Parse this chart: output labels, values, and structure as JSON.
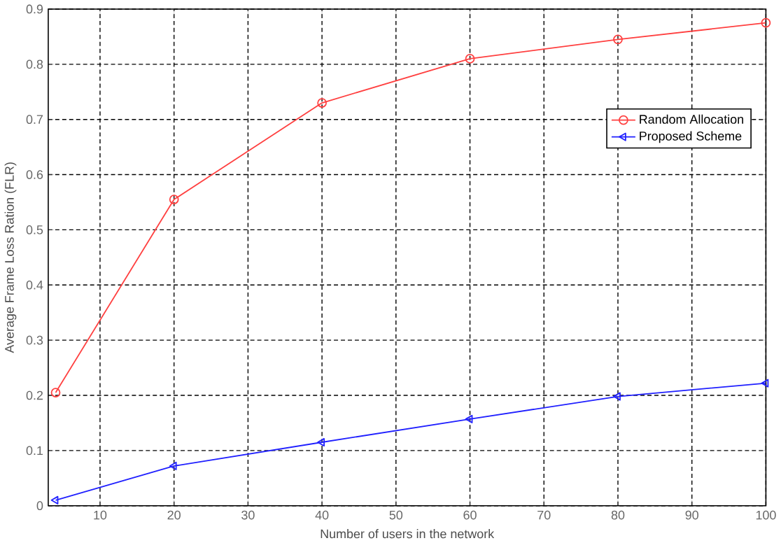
{
  "chart_data": {
    "type": "line",
    "xlabel": "Number of users in the network",
    "ylabel": "Average Frame Loss Ration (FLR)",
    "x": [
      4,
      20,
      40,
      60,
      80,
      100
    ],
    "series": [
      {
        "name": "Random Allocation",
        "color": "#ff4040",
        "marker": "circle",
        "values": [
          0.205,
          0.555,
          0.73,
          0.81,
          0.845,
          0.875
        ]
      },
      {
        "name": "Proposed Scheme",
        "color": "#2020ff",
        "marker": "triangle",
        "values": [
          0.01,
          0.072,
          0.115,
          0.157,
          0.198,
          0.222
        ]
      }
    ],
    "xlim": [
      3,
      100
    ],
    "xticks": [
      10,
      20,
      30,
      40,
      50,
      60,
      70,
      80,
      90,
      100
    ],
    "ylim": [
      0,
      0.9
    ],
    "yticks": [
      0,
      0.1,
      0.2,
      0.3,
      0.4,
      0.5,
      0.6,
      0.7,
      0.8,
      0.9
    ],
    "grid": true,
    "legend": "top right",
    "line_style": "solid"
  }
}
